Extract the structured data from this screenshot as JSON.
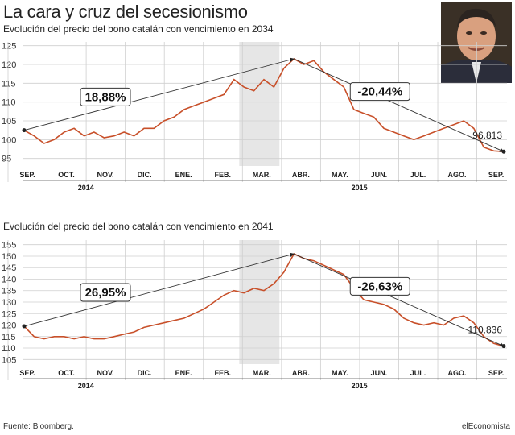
{
  "header": {
    "title": "La cara y cruz del secesionismo",
    "source": "Fuente: Bloomberg.",
    "brand": "elEconomista"
  },
  "colors": {
    "line": "#c8502a",
    "grid": "#cfcfcf",
    "highlight": "#e6e6e6",
    "arrow": "#333333"
  },
  "chart_data": [
    {
      "type": "line",
      "title": "Evolución del precio del bono catalán con vencimiento en 2034",
      "ylim": [
        93,
        126
      ],
      "yticks": [
        95,
        100,
        105,
        110,
        115,
        120,
        125
      ],
      "months": [
        "SEP.",
        "OCT.",
        "NOV.",
        "DIC.",
        "ENE.",
        "FEB.",
        "MAR.",
        "ABR.",
        "MAY.",
        "JUN.",
        "JUL.",
        "AGO.",
        "SEP."
      ],
      "years": [
        "2014",
        "2015"
      ],
      "start_value": 102.5,
      "peak_value": 121.5,
      "end_value": 96.813,
      "end_label": "96.813",
      "rise_label": "18,88%",
      "fall_label": "-20,44%",
      "series_points": [
        102.5,
        101,
        99,
        100,
        102,
        103,
        101,
        102,
        100.5,
        101,
        102,
        101,
        103,
        103,
        105,
        106,
        108,
        109,
        110,
        111,
        112,
        116,
        114,
        113,
        116,
        114,
        119,
        121.5,
        120,
        121,
        118,
        116,
        114,
        108,
        107,
        106,
        103,
        102,
        101,
        100,
        101,
        102,
        103,
        104,
        105,
        103,
        98,
        97,
        96.813
      ]
    },
    {
      "type": "line",
      "title": "Evolución del precio del bono catalán con vencimiento en 2041",
      "ylim": [
        103,
        157
      ],
      "yticks": [
        105,
        110,
        115,
        120,
        125,
        130,
        135,
        140,
        145,
        150,
        155
      ],
      "months": [
        "SEP.",
        "OCT.",
        "NOV.",
        "DIC.",
        "ENE.",
        "FEB.",
        "MAR.",
        "ABR.",
        "MAY.",
        "JUN.",
        "JUL.",
        "AGO.",
        "SEP."
      ],
      "years": [
        "2014",
        "2015"
      ],
      "start_value": 119.5,
      "peak_value": 151,
      "end_value": 110.836,
      "end_label": "110.836",
      "rise_label": "26,95%",
      "fall_label": "-26,63%",
      "series_points": [
        119.5,
        115,
        114,
        115,
        115,
        114,
        115,
        114,
        114,
        115,
        116,
        117,
        119,
        120,
        121,
        122,
        123,
        125,
        127,
        130,
        133,
        135,
        134,
        136,
        135,
        138,
        143,
        151,
        149,
        148,
        146,
        144,
        142,
        136,
        131,
        130,
        129,
        127,
        123,
        121,
        120,
        121,
        120,
        123,
        124,
        121,
        115,
        112,
        110.836
      ]
    }
  ]
}
